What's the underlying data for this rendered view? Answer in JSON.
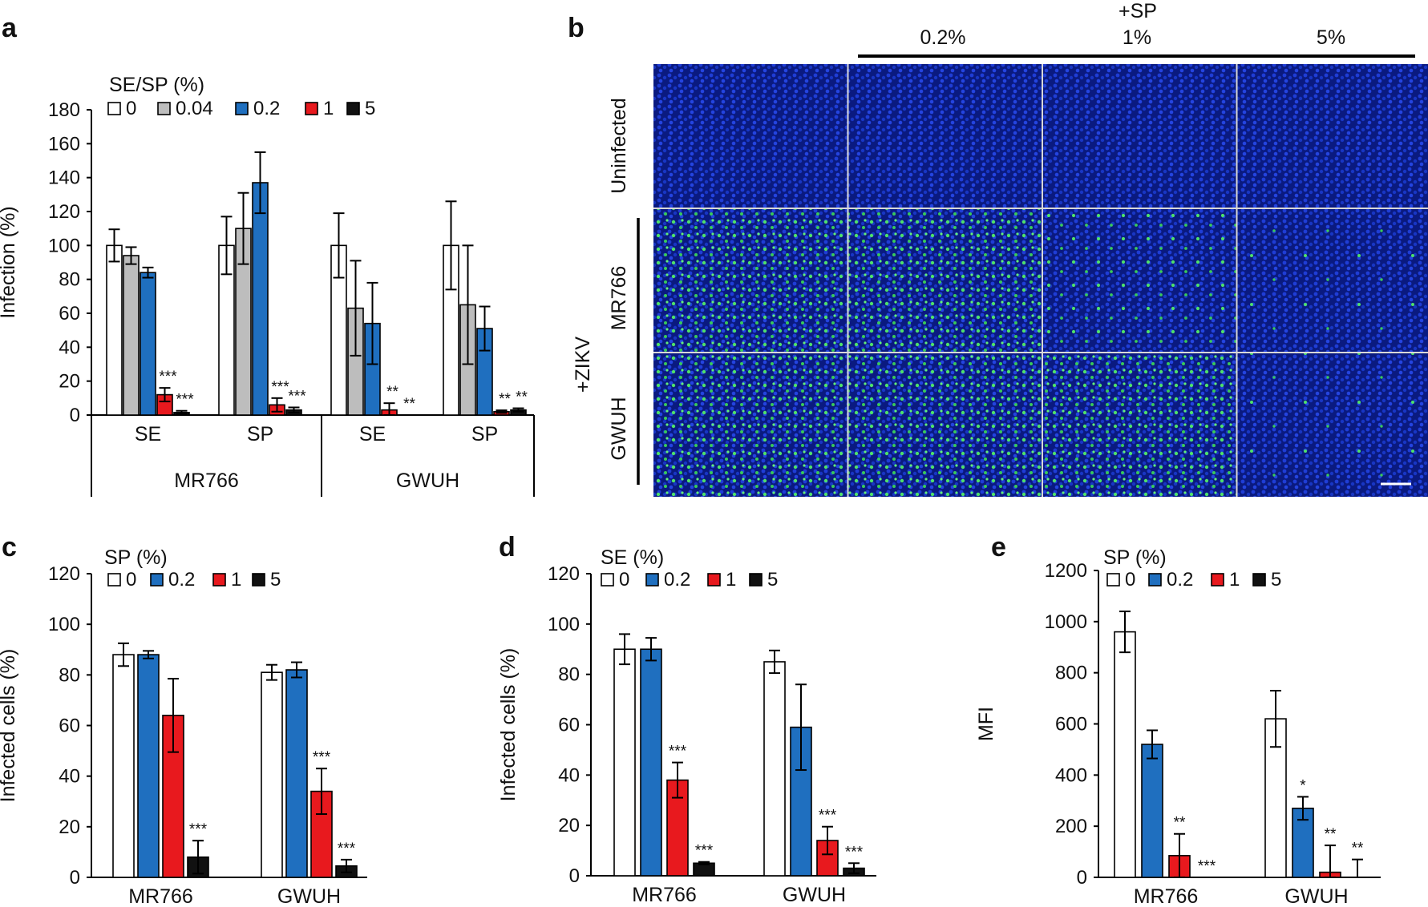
{
  "colors": {
    "0": "#ffffff",
    "0.04": "#bdbdbd",
    "0.2": "#1f6fbf",
    "1": "#e8191e",
    "5": "#111111"
  },
  "panels": {
    "a": "a",
    "b": "b",
    "c": "c",
    "d": "d",
    "e": "e"
  },
  "micro": {
    "sp_label": "+SP",
    "columns": [
      "",
      "0.2%",
      "1%",
      "5%"
    ],
    "rows": [
      "Uninfected",
      "MR766",
      "GWUH"
    ],
    "zikv_label": "+ZIKV"
  },
  "chart_data": [
    {
      "id": "a",
      "type": "bar",
      "ylabel": "Infection (%)",
      "ylim": [
        0,
        180
      ],
      "yticks": [
        0,
        20,
        40,
        60,
        80,
        100,
        120,
        140,
        160,
        180
      ],
      "legend_title": "SE/SP (%)",
      "legend": [
        "0",
        "0.04",
        "0.2",
        "1",
        "5"
      ],
      "groups": [
        "SE",
        "SP",
        "SE",
        "SP"
      ],
      "supergroups": [
        "MR766",
        "GWUH"
      ],
      "bars": [
        [
          {
            "v": 100,
            "e": 9.5
          },
          {
            "v": 94,
            "e": 5
          },
          {
            "v": 84,
            "e": 3
          },
          {
            "v": 12,
            "e": 4,
            "s": "***"
          },
          {
            "v": 1.5,
            "e": 1,
            "s": "***"
          }
        ],
        [
          {
            "v": 100,
            "e": 17
          },
          {
            "v": 110,
            "e": 21
          },
          {
            "v": 137,
            "e": 18
          },
          {
            "v": 6,
            "e": 4,
            "s": "***"
          },
          {
            "v": 3,
            "e": 1.5,
            "s": "***"
          }
        ],
        [
          {
            "v": 100,
            "e": 19
          },
          {
            "v": 63,
            "e": 28
          },
          {
            "v": 54,
            "e": 24
          },
          {
            "v": 3,
            "e": 4,
            "s": "**"
          },
          {
            "v": 0,
            "e": 0,
            "s": "**"
          }
        ],
        [
          {
            "v": 100,
            "e": 26
          },
          {
            "v": 65,
            "e": 35
          },
          {
            "v": 51,
            "e": 13
          },
          {
            "v": 2,
            "e": 0.8,
            "s": "**"
          },
          {
            "v": 3,
            "e": 1,
            "s": "**"
          }
        ]
      ]
    },
    {
      "id": "c",
      "type": "bar",
      "ylabel": "Infected cells (%)",
      "ylim": [
        0,
        120
      ],
      "yticks": [
        0,
        20,
        40,
        60,
        80,
        100,
        120
      ],
      "legend_title": "SP (%)",
      "legend": [
        "0",
        "0.2",
        "1",
        "5"
      ],
      "groups": [
        "MR766",
        "GWUH"
      ],
      "bars": [
        [
          {
            "v": 88,
            "e": 4.5
          },
          {
            "v": 88,
            "e": 1.5
          },
          {
            "v": 64,
            "e": 14.5
          },
          {
            "v": 8,
            "e": 6.5,
            "s": "***"
          }
        ],
        [
          {
            "v": 81,
            "e": 3
          },
          {
            "v": 82,
            "e": 3
          },
          {
            "v": 34,
            "e": 9,
            "s": "***"
          },
          {
            "v": 4.5,
            "e": 2.5,
            "s": "***"
          }
        ]
      ]
    },
    {
      "id": "d",
      "type": "bar",
      "ylabel": "Infected cells (%)",
      "ylim": [
        0,
        120
      ],
      "yticks": [
        0,
        20,
        40,
        60,
        80,
        100,
        120
      ],
      "legend_title": "SE (%)",
      "legend": [
        "0",
        "0.2",
        "1",
        "5"
      ],
      "groups": [
        "MR766",
        "GWUH"
      ],
      "bars": [
        [
          {
            "v": 90,
            "e": 6
          },
          {
            "v": 90,
            "e": 4.5
          },
          {
            "v": 38,
            "e": 7,
            "s": "***"
          },
          {
            "v": 5,
            "e": 0.5,
            "s": "***"
          }
        ],
        [
          {
            "v": 85,
            "e": 4.5
          },
          {
            "v": 59,
            "e": 17
          },
          {
            "v": 14,
            "e": 5.5,
            "s": "***"
          },
          {
            "v": 3,
            "e": 2,
            "s": "***"
          }
        ]
      ]
    },
    {
      "id": "e",
      "type": "bar",
      "ylabel": "MFI",
      "ylim": [
        0,
        1200
      ],
      "yticks": [
        0,
        200,
        400,
        600,
        800,
        1000,
        1200
      ],
      "legend_title": "SP (%)",
      "legend": [
        "0",
        "0.2",
        "1",
        "5"
      ],
      "groups": [
        "MR766",
        "GWUH"
      ],
      "bars": [
        [
          {
            "v": 960,
            "e": 80
          },
          {
            "v": 520,
            "e": 55
          },
          {
            "v": 85,
            "e": 85,
            "s": "**"
          },
          {
            "v": 0,
            "e": 0,
            "s": "***"
          }
        ],
        [
          {
            "v": 620,
            "e": 110
          },
          {
            "v": 270,
            "e": 45,
            "s": "*"
          },
          {
            "v": 20,
            "e": 105,
            "s": "**"
          },
          {
            "v": 0,
            "e": 70,
            "s": "**"
          }
        ]
      ]
    }
  ]
}
